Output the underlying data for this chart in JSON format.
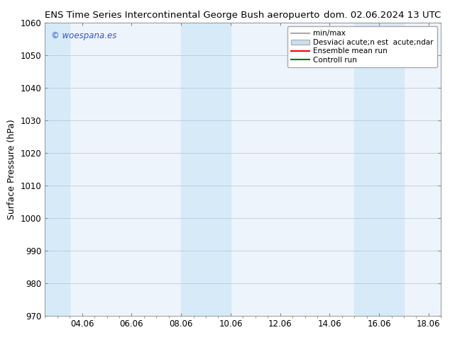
{
  "title_left": "ENS Time Series Intercontinental George Bush aeropuerto",
  "title_right": "dom. 02.06.2024 13 UTC",
  "ylabel": "Surface Pressure (hPa)",
  "ylim": [
    970,
    1060
  ],
  "yticks": [
    970,
    980,
    990,
    1000,
    1010,
    1020,
    1030,
    1040,
    1050,
    1060
  ],
  "xlim_start": 2.5,
  "xlim_end": 18.5,
  "xtick_labels": [
    "04.06",
    "06.06",
    "08.06",
    "10.06",
    "12.06",
    "14.06",
    "16.06",
    "18.06"
  ],
  "xtick_positions": [
    4.0,
    6.0,
    8.0,
    10.0,
    12.0,
    14.0,
    16.0,
    18.0
  ],
  "shaded_bands": [
    {
      "x_start": 2.5,
      "x_end": 3.5,
      "color": "#d6eaf8"
    },
    {
      "x_start": 8.0,
      "x_end": 10.0,
      "color": "#d6eaf8"
    },
    {
      "x_start": 15.0,
      "x_end": 17.0,
      "color": "#d6eaf8"
    }
  ],
  "background_color": "#ffffff",
  "plot_bg_color": "#eef4fb",
  "grid_color": "#b0c4d8",
  "watermark_text": "© woespana.es",
  "watermark_color": "#3355cc",
  "legend_entries": [
    {
      "label": "min/max",
      "color": "#aaaaaa",
      "type": "line",
      "lw": 1.5
    },
    {
      "label": "Desviaci acute;n est  acute;ndar",
      "color": "#c8dff0",
      "type": "patch"
    },
    {
      "label": "Ensemble mean run",
      "color": "#ff0000",
      "type": "line",
      "lw": 1.5
    },
    {
      "label": "Controll run",
      "color": "#007700",
      "type": "line",
      "lw": 1.5
    }
  ],
  "title_fontsize": 9.5,
  "axis_fontsize": 9,
  "tick_fontsize": 8.5,
  "legend_fontsize": 7.5
}
